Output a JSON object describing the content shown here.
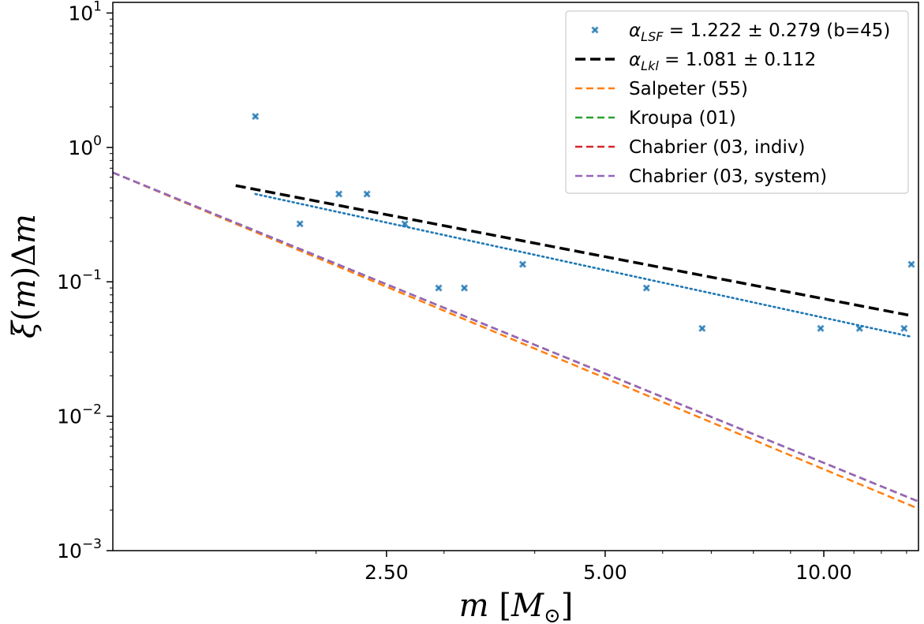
{
  "chart_data": {
    "type": "scatter",
    "xscale": "log",
    "yscale": "log",
    "xlim": [
      1.05,
      13.5
    ],
    "ylim": [
      0.001,
      12
    ],
    "xlabel": "m [M⊙]",
    "ylabel": "ξ(m)Δm",
    "x_ticks": [
      {
        "value": 2.5,
        "label": "2.50"
      },
      {
        "value": 5.0,
        "label": "5.00"
      },
      {
        "value": 10.0,
        "label": "10.00"
      }
    ],
    "y_ticks": [
      {
        "value": 0.001,
        "base": "10",
        "exp": "−3"
      },
      {
        "value": 0.01,
        "base": "10",
        "exp": "−2"
      },
      {
        "value": 0.1,
        "base": "10",
        "exp": "−1"
      },
      {
        "value": 1,
        "base": "10",
        "exp": "0"
      },
      {
        "value": 10,
        "base": "10",
        "exp": "1"
      }
    ],
    "scatter": {
      "name": "α_LSF = 1.222 ± 0.279 (b=45)",
      "color": "#1f77b4",
      "points": [
        {
          "x": 1.65,
          "y": 1.7
        },
        {
          "x": 1.9,
          "y": 0.27
        },
        {
          "x": 2.15,
          "y": 0.45
        },
        {
          "x": 2.35,
          "y": 0.45
        },
        {
          "x": 2.65,
          "y": 0.27
        },
        {
          "x": 2.95,
          "y": 0.09
        },
        {
          "x": 3.2,
          "y": 0.09
        },
        {
          "x": 3.85,
          "y": 0.135
        },
        {
          "x": 5.7,
          "y": 0.09
        },
        {
          "x": 6.8,
          "y": 0.045
        },
        {
          "x": 9.9,
          "y": 0.045
        },
        {
          "x": 11.2,
          "y": 0.045
        },
        {
          "x": 12.9,
          "y": 0.045
        },
        {
          "x": 13.2,
          "y": 0.135
        }
      ]
    },
    "fit_lsf": {
      "color": "#1f77b4",
      "x": [
        1.65,
        13.2
      ],
      "y": [
        0.45,
        0.039
      ]
    },
    "fit_lkl": {
      "name": "α_Lkl = 1.081 ± 0.112",
      "color": "#000000",
      "x": [
        1.55,
        13.2
      ],
      "y": [
        0.52,
        0.056
      ]
    },
    "imf_lines": [
      {
        "name": "Salpeter (55)",
        "color": "#ff7f0e",
        "x": [
          1.05,
          13.5
        ],
        "y": [
          0.65,
          0.00205
        ]
      },
      {
        "name": "Kroupa (01)",
        "color": "#2ca02c",
        "x": [
          1.05,
          13.5
        ],
        "y": [
          0.65,
          0.00232
        ]
      },
      {
        "name": "Chabrier (03, indiv)",
        "color": "#d62728",
        "x": [
          1.05,
          13.5
        ],
        "y": [
          0.65,
          0.00232
        ]
      },
      {
        "name": "Chabrier (03, system)",
        "color": "#9467bd",
        "x": [
          1.05,
          13.5
        ],
        "y": [
          0.65,
          0.00232
        ]
      }
    ],
    "legend": {
      "position": "top-right",
      "entries": [
        {
          "label_main": "α",
          "label_sub": "LSF",
          "label_rest": " = 1.222 ± 0.279 (b=45)",
          "kind": "marker",
          "color": "#1f77b4"
        },
        {
          "label_main": "α",
          "label_sub": "Lkl",
          "label_rest": " = 1.081 ± 0.112",
          "kind": "thickdash",
          "color": "#000000"
        },
        {
          "label": "Salpeter (55)",
          "kind": "dash",
          "color": "#ff7f0e"
        },
        {
          "label": "Kroupa (01)",
          "kind": "dash",
          "color": "#2ca02c"
        },
        {
          "label": "Chabrier (03, indiv)",
          "kind": "dash",
          "color": "#d62728"
        },
        {
          "label": "Chabrier (03, system)",
          "kind": "dash",
          "color": "#9467bd"
        }
      ]
    }
  }
}
